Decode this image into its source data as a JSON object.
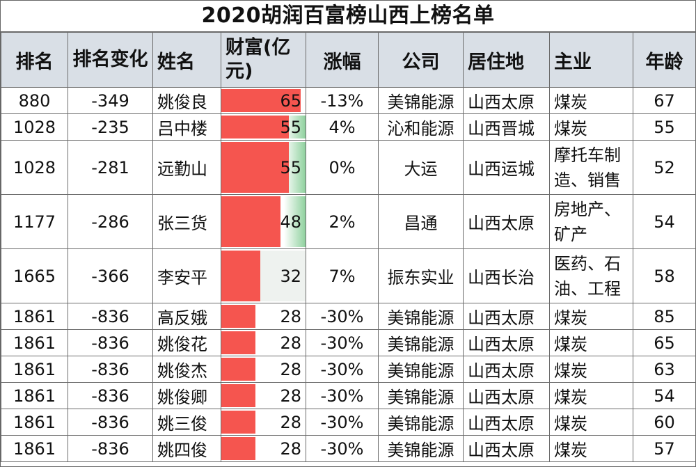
{
  "title": "2020胡润百富榜山西上榜名单",
  "headers": {
    "rank": "排名",
    "rank_change": "排名变化",
    "name": "姓名",
    "wealth": "财富(亿元)",
    "change_pct": "涨幅",
    "company": "公司",
    "residence": "居住地",
    "business": "主业",
    "age": "年龄"
  },
  "colors": {
    "header_bg": "#d9dfe6",
    "bar_red": "#f5554f",
    "bar_green": "#8fd19e",
    "bar_light": "#eef2ef"
  },
  "wealth_max": 65,
  "rows": [
    {
      "rank": "880",
      "rank_change": "-349",
      "name": "姚俊良",
      "wealth": 65,
      "change_pct": "-13%",
      "company": "美锦能源",
      "residence": "山西太原",
      "business": "煤炭",
      "age": "67",
      "bar_tint": "red"
    },
    {
      "rank": "1028",
      "rank_change": "-235",
      "name": "吕中楼",
      "wealth": 55,
      "change_pct": "4%",
      "company": "沁和能源",
      "residence": "山西晋城",
      "business": "煤炭",
      "age": "55",
      "bar_tint": "green"
    },
    {
      "rank": "1028",
      "rank_change": "-281",
      "name": "远勤山",
      "wealth": 55,
      "change_pct": "0%",
      "company": "大运",
      "residence": "山西运城",
      "business": "摩托车制造、销售",
      "age": "52",
      "bar_tint": "green"
    },
    {
      "rank": "1177",
      "rank_change": "-286",
      "name": "张三货",
      "wealth": 48,
      "change_pct": "2%",
      "company": "昌通",
      "residence": "山西太原",
      "business": "房地产、矿产",
      "age": "54",
      "bar_tint": "green"
    },
    {
      "rank": "1665",
      "rank_change": "-366",
      "name": "李安平",
      "wealth": 32,
      "change_pct": "7%",
      "company": "振东实业",
      "residence": "山西长治",
      "business": "医药、石油、工程",
      "age": "58",
      "bar_tint": "light"
    },
    {
      "rank": "1861",
      "rank_change": "-836",
      "name": "高反娥",
      "wealth": 28,
      "change_pct": "-30%",
      "company": "美锦能源",
      "residence": "山西太原",
      "business": "煤炭",
      "age": "85",
      "bar_tint": "none"
    },
    {
      "rank": "1861",
      "rank_change": "-836",
      "name": "姚俊花",
      "wealth": 28,
      "change_pct": "-30%",
      "company": "美锦能源",
      "residence": "山西太原",
      "business": "煤炭",
      "age": "65",
      "bar_tint": "none"
    },
    {
      "rank": "1861",
      "rank_change": "-836",
      "name": "姚俊杰",
      "wealth": 28,
      "change_pct": "-30%",
      "company": "美锦能源",
      "residence": "山西太原",
      "business": "煤炭",
      "age": "63",
      "bar_tint": "none"
    },
    {
      "rank": "1861",
      "rank_change": "-836",
      "name": "姚俊卿",
      "wealth": 28,
      "change_pct": "-30%",
      "company": "美锦能源",
      "residence": "山西太原",
      "business": "煤炭",
      "age": "54",
      "bar_tint": "none"
    },
    {
      "rank": "1861",
      "rank_change": "-836",
      "name": "姚三俊",
      "wealth": 28,
      "change_pct": "-30%",
      "company": "美锦能源",
      "residence": "山西太原",
      "business": "煤炭",
      "age": "60",
      "bar_tint": "none"
    },
    {
      "rank": "1861",
      "rank_change": "-836",
      "name": "姚四俊",
      "wealth": 28,
      "change_pct": "-30%",
      "company": "美锦能源",
      "residence": "山西太原",
      "business": "煤炭",
      "age": "57",
      "bar_tint": "none"
    }
  ]
}
